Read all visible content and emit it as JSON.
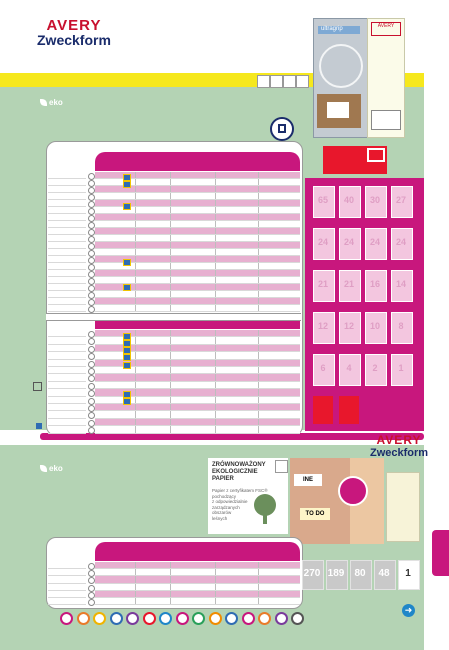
{
  "brand": {
    "avery": "AVERY",
    "zweckform": "Zweckform"
  },
  "eko_badge": "eko",
  "eco_note": {
    "title_lines": [
      "ZRÓWNOWAŻONY",
      "EKOLOGICZNIE",
      "PAPIER"
    ],
    "body_lines": [
      "Papier z certyfikatem FSC®",
      "pochodzący",
      "z odpowiedzialnie",
      "zarządzanych",
      "obszarów",
      "leśnych"
    ]
  },
  "product_box": {
    "ultragrip": "ultragrip"
  },
  "label_counts_top": [
    "65",
    "40",
    "30",
    "27",
    "24",
    "24",
    "24",
    "24",
    "21",
    "21",
    "16",
    "14",
    "12",
    "12",
    "10",
    "8",
    "6",
    "4",
    "2",
    "1"
  ],
  "label_counts_bottom": [
    "270",
    "189",
    "80",
    "48",
    "1"
  ],
  "colors": {
    "magenta": "#c8177d",
    "green": "#b4d3b4",
    "yellow": "#f6e81d",
    "red": "#e8172c",
    "blue": "#1f86c8"
  },
  "icons": {
    "top_badges": [
      "printer-icon",
      "scissors-icon",
      "label-icon",
      "eco-icon"
    ],
    "bottom_strip": [
      "laser-icon",
      "inkjet-icon",
      "copier-icon",
      "pen-icon",
      "ruler-icon",
      "sheet-icon",
      "design-icon",
      "printer-icon",
      "calendar-icon",
      "pencil-icon",
      "tools-icon",
      "leaf-icon",
      "shape-icon",
      "box-icon",
      "grid-icon"
    ],
    "next_arrow": "arrow-right-icon"
  }
}
